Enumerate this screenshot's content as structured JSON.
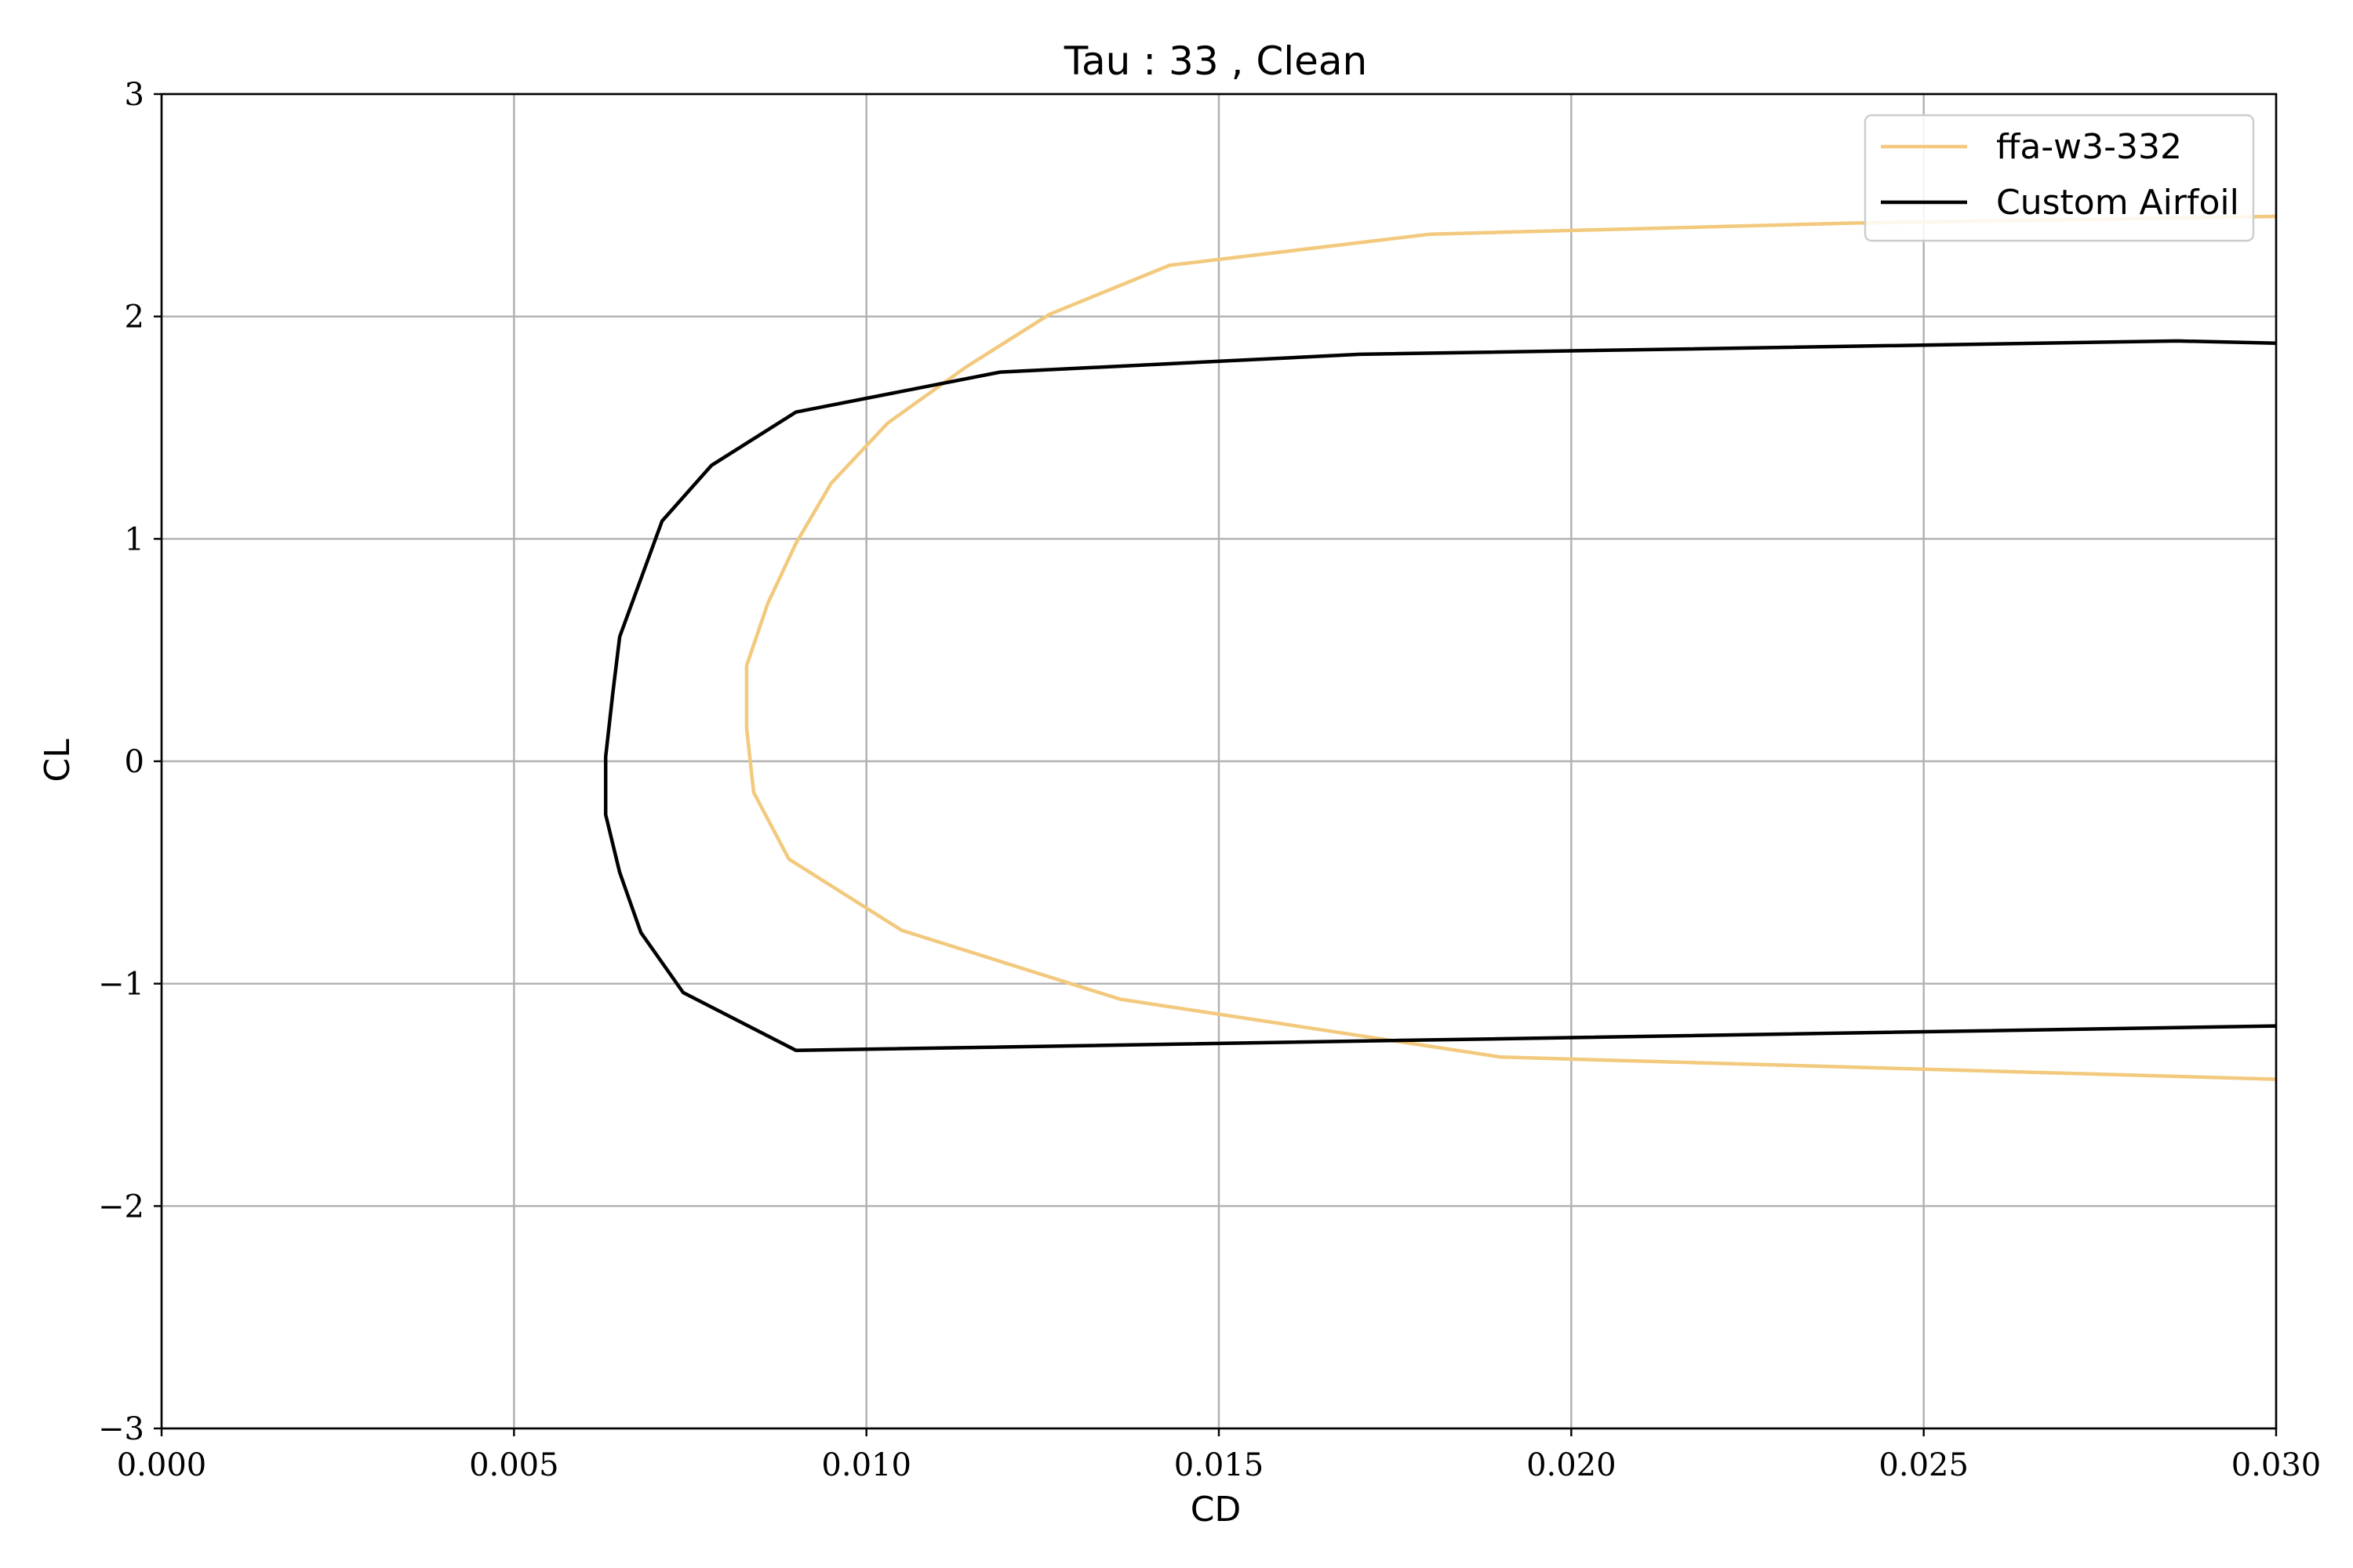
{
  "chart_data": {
    "type": "line",
    "title": "Tau : 33 , Clean",
    "xlabel": "CD",
    "ylabel": "CL",
    "xlim": [
      0.0,
      0.03
    ],
    "ylim": [
      -3,
      3
    ],
    "x_ticks": [
      0.0,
      0.005,
      0.01,
      0.015,
      0.02,
      0.025,
      0.03
    ],
    "x_tick_labels": [
      "0.000",
      "0.005",
      "0.010",
      "0.015",
      "0.020",
      "0.025",
      "0.030"
    ],
    "y_ticks": [
      -3,
      -2,
      -1,
      0,
      1,
      2,
      3
    ],
    "y_tick_labels": [
      "−3",
      "−2",
      "−1",
      "0",
      "1",
      "2",
      "3"
    ],
    "grid": true,
    "legend_position": "top-right",
    "series": [
      {
        "name": "ffa-w3-332",
        "color": "#f2c97d",
        "points": [
          [
            0.03,
            -1.43
          ],
          [
            0.019,
            -1.33
          ],
          [
            0.0136,
            -1.07
          ],
          [
            0.0105,
            -0.76
          ],
          [
            0.0089,
            -0.44
          ],
          [
            0.0084,
            -0.14
          ],
          [
            0.0083,
            0.15
          ],
          [
            0.0083,
            0.43
          ],
          [
            0.0086,
            0.71
          ],
          [
            0.009,
            0.98
          ],
          [
            0.0095,
            1.25
          ],
          [
            0.0103,
            1.52
          ],
          [
            0.0114,
            1.77
          ],
          [
            0.0126,
            2.01
          ],
          [
            0.0143,
            2.23
          ],
          [
            0.018,
            2.37
          ],
          [
            0.024,
            2.42
          ],
          [
            0.03,
            2.45
          ]
        ]
      },
      {
        "name": "Custom Airfoil",
        "color": "#000000",
        "points": [
          [
            0.03,
            -1.19
          ],
          [
            0.009,
            -1.3
          ],
          [
            0.0074,
            -1.04
          ],
          [
            0.0068,
            -0.77
          ],
          [
            0.0065,
            -0.5
          ],
          [
            0.0063,
            -0.24
          ],
          [
            0.0063,
            0.02
          ],
          [
            0.0064,
            0.3
          ],
          [
            0.0065,
            0.56
          ],
          [
            0.0068,
            0.82
          ],
          [
            0.0071,
            1.08
          ],
          [
            0.0078,
            1.33
          ],
          [
            0.009,
            1.57
          ],
          [
            0.0119,
            1.75
          ],
          [
            0.017,
            1.83
          ],
          [
            0.0286,
            1.89
          ],
          [
            0.03,
            1.88
          ]
        ]
      }
    ]
  }
}
